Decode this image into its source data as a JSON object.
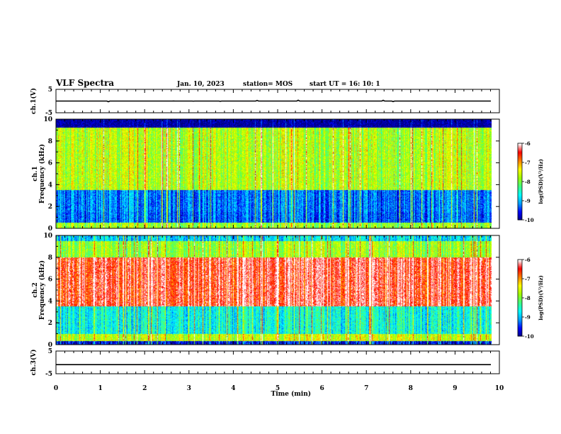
{
  "header": {
    "title": "VLF Spectra",
    "date": "Jan. 10, 2023",
    "station": "station= MOS",
    "start_ut": "start  UT  =   16: 10: 1"
  },
  "colors": {
    "colormap": [
      "#000080",
      "#0000ff",
      "#00a0ff",
      "#00ffff",
      "#40ff80",
      "#a0ff00",
      "#ffff00",
      "#ff8000",
      "#ff0000",
      "#ffffff"
    ],
    "axis": "#000000",
    "background": "#ffffff"
  },
  "chart_data": [
    {
      "type": "line",
      "name": "ch1-waveform",
      "ylabel": "ch.1(V)",
      "ylim": [
        -5,
        5
      ],
      "yticks": [
        "5",
        "-5"
      ],
      "xlim": [
        0,
        10
      ],
      "description_level": "near 0 V, flat trace with small spikes"
    },
    {
      "type": "heatmap",
      "name": "ch1-spectrogram",
      "ylabel": "ch.1\nFrequency (kHz)",
      "ylabel_lines": [
        "ch.1",
        "Frequency (kHz)"
      ],
      "ylim": [
        0,
        10
      ],
      "yticks": [
        "0",
        "2",
        "4",
        "6",
        "8",
        "10"
      ],
      "xlim": [
        0,
        9.83
      ],
      "colorbar": {
        "label": "log(PSD)(V²/Hz)",
        "range": [
          -10,
          -6
        ],
        "ticks": [
          "-6",
          "-7",
          "-8",
          "-9",
          "-10"
        ]
      },
      "band_profile": [
        {
          "f_khz": [
            0,
            0.5
          ],
          "level": 0.55
        },
        {
          "f_khz": [
            0.5,
            1.5
          ],
          "level": 0.18
        },
        {
          "f_khz": [
            1.5,
            3.5
          ],
          "level": 0.2
        },
        {
          "f_khz": [
            3.5,
            9.2
          ],
          "level": 0.58
        },
        {
          "f_khz": [
            9.2,
            10
          ],
          "level": 0.02
        }
      ]
    },
    {
      "type": "heatmap",
      "name": "ch2-spectrogram",
      "ylabel": "ch.2\nFrequency (kHz)",
      "ylabel_lines": [
        "ch.2",
        "Frequency (kHz)"
      ],
      "ylim": [
        0,
        10
      ],
      "yticks": [
        "0",
        "2",
        "4",
        "6",
        "8",
        "10"
      ],
      "xlim": [
        0,
        9.83
      ],
      "colorbar": {
        "label": "log(PSD)(V²/Hz)",
        "range": [
          -10,
          -6
        ],
        "ticks": [
          "-6",
          "-7",
          "-8",
          "-9",
          "-10"
        ]
      },
      "band_profile": [
        {
          "f_khz": [
            0,
            0.3
          ],
          "level": 0.1
        },
        {
          "f_khz": [
            0.3,
            1.0
          ],
          "level": 0.6
        },
        {
          "f_khz": [
            1.0,
            3.5
          ],
          "level": 0.35
        },
        {
          "f_khz": [
            3.5,
            8.0
          ],
          "level": 0.9
        },
        {
          "f_khz": [
            8.0,
            9.5
          ],
          "level": 0.55
        },
        {
          "f_khz": [
            9.5,
            10
          ],
          "level": 0.3
        }
      ]
    },
    {
      "type": "line",
      "name": "ch3-waveform",
      "ylabel": "ch.3(V)",
      "ylim": [
        -5,
        5
      ],
      "yticks": [
        "5",
        "-5"
      ],
      "xlim": [
        0,
        10
      ],
      "description_level": "flat at about -1 V"
    }
  ],
  "xaxis": {
    "label": "Time  (min)",
    "range": [
      0,
      10
    ],
    "ticks": [
      "0",
      "1",
      "2",
      "3",
      "4",
      "5",
      "6",
      "7",
      "8",
      "9",
      "10"
    ]
  }
}
